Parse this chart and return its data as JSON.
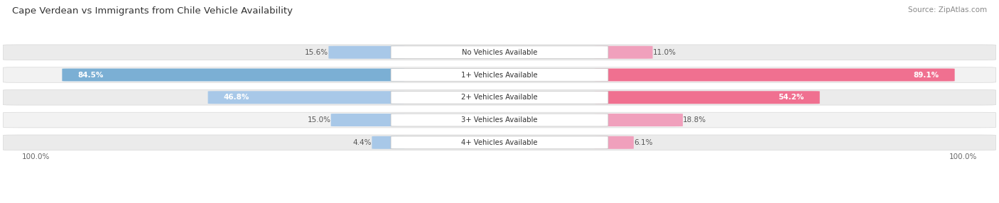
{
  "title": "Cape Verdean vs Immigrants from Chile Vehicle Availability",
  "source": "Source: ZipAtlas.com",
  "categories": [
    "No Vehicles Available",
    "1+ Vehicles Available",
    "2+ Vehicles Available",
    "3+ Vehicles Available",
    "4+ Vehicles Available"
  ],
  "cape_verdean": [
    15.6,
    84.5,
    46.8,
    15.0,
    4.4
  ],
  "immigrants_chile": [
    11.0,
    89.1,
    54.2,
    18.8,
    6.1
  ],
  "blue_color": "#7BAFD4",
  "pink_color": "#F07090",
  "blue_light": "#A8C8E8",
  "pink_light": "#F0A0BC",
  "figsize": [
    14.06,
    2.86
  ],
  "dpi": 100
}
